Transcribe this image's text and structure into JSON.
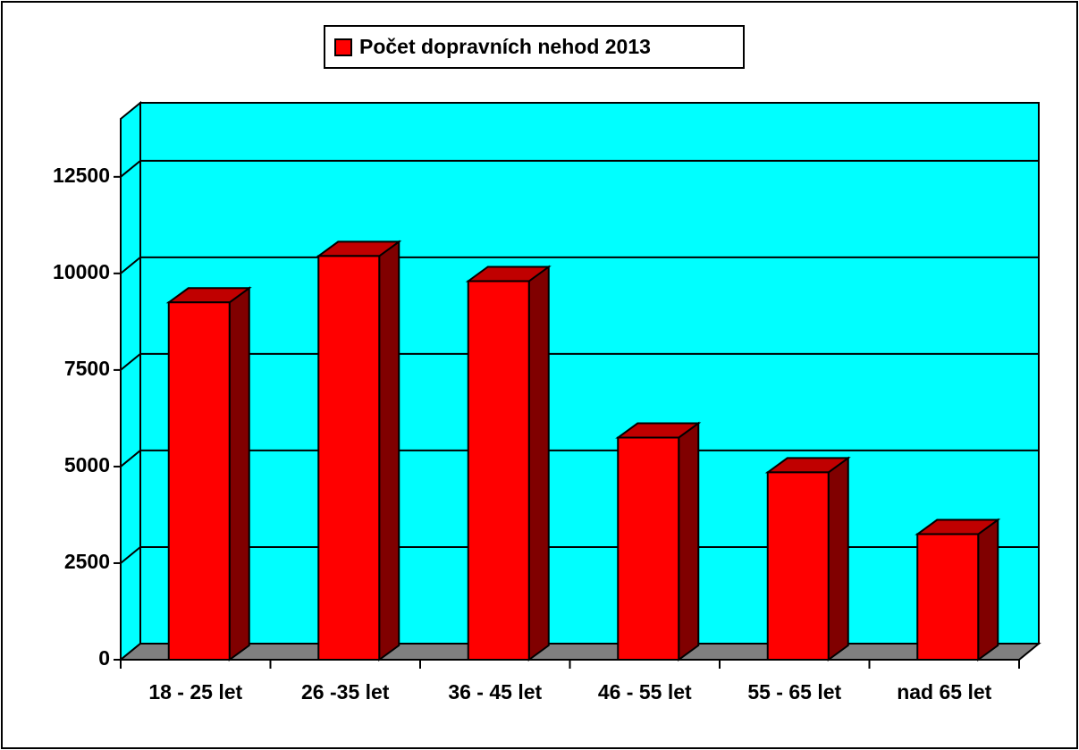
{
  "chart_data": {
    "type": "bar3d",
    "legend_label": "Počet dopravních nehod 2013",
    "categories": [
      "18 - 25 let",
      "26 -35 let",
      "36 - 45 let",
      "46 - 55 let",
      "55 - 65 let",
      "nad 65 let"
    ],
    "values": [
      9250,
      10450,
      9800,
      5750,
      4850,
      3250
    ],
    "color": "#ff0000",
    "wall_color": "#00ffff",
    "floor_color": "#808080",
    "ylim": [
      0,
      14000
    ],
    "yticks": [
      0,
      2500,
      5000,
      7500,
      10000,
      12500
    ],
    "grid": true,
    "legend": "top"
  }
}
